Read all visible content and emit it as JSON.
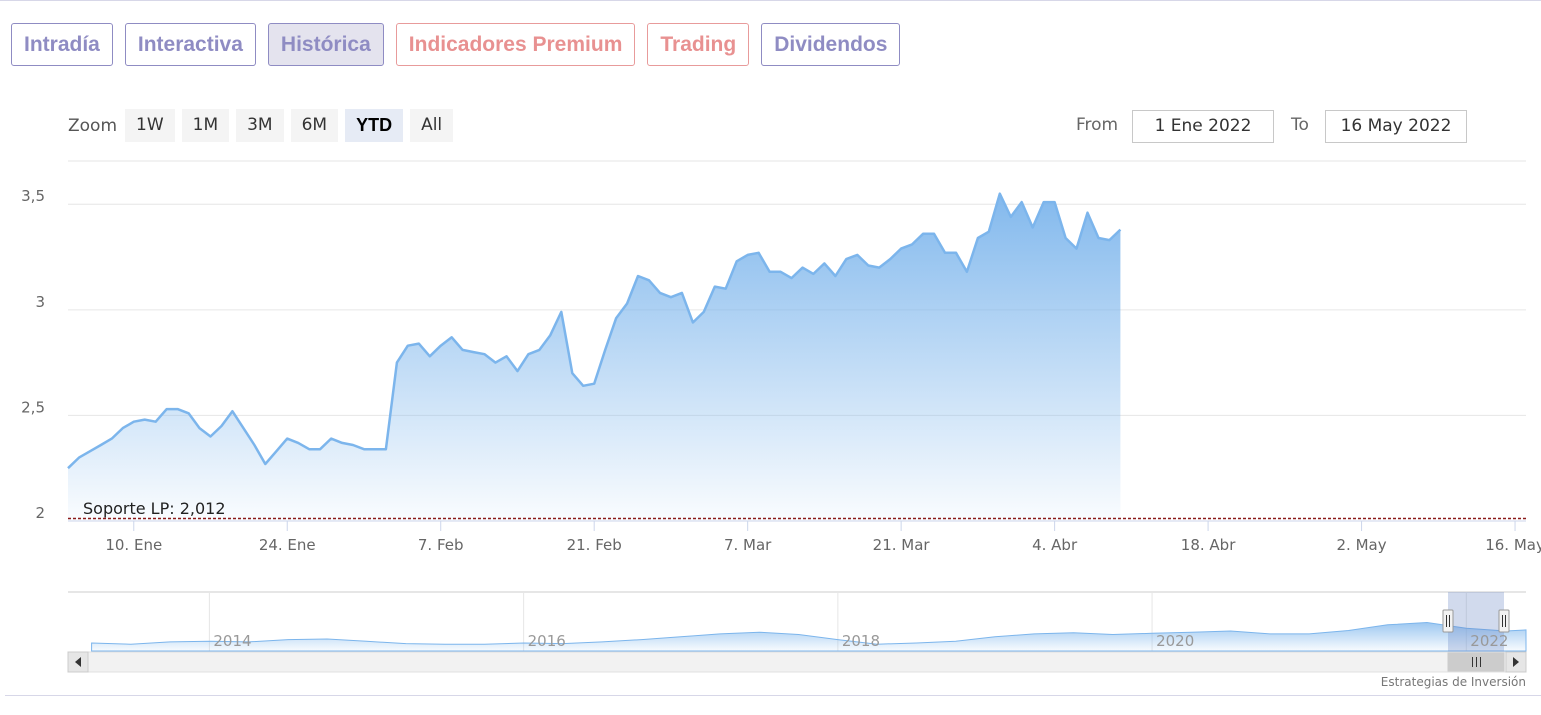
{
  "tabs": [
    {
      "label": "Intradía",
      "style": "normal"
    },
    {
      "label": "Interactiva",
      "style": "normal"
    },
    {
      "label": "Histórica",
      "style": "active"
    },
    {
      "label": "Indicadores Premium",
      "style": "premium"
    },
    {
      "label": "Trading",
      "style": "premium"
    },
    {
      "label": "Dividendos",
      "style": "normal"
    }
  ],
  "zoom": {
    "label": "Zoom",
    "buttons": [
      "1W",
      "1M",
      "3M",
      "6M",
      "YTD",
      "All"
    ],
    "selected": "YTD"
  },
  "range": {
    "from_label": "From",
    "from_value": "1 Ene 2022",
    "to_label": "To",
    "to_value": "16 May 2022"
  },
  "credit": "Estrategias de Inversión",
  "colors": {
    "line": "#7cb5ec",
    "accent_tab": "#8f8cc3",
    "premium_tab": "#e89191",
    "support_line": "#8b1a1a"
  },
  "chart_data": {
    "type": "area",
    "ylim": [
      2,
      3.7
    ],
    "yticks": [
      {
        "value": 2,
        "label": "2"
      },
      {
        "value": 2.5,
        "label": "2,5"
      },
      {
        "value": 3,
        "label": "3"
      },
      {
        "value": 3.5,
        "label": "3,5"
      }
    ],
    "xlim": [
      "2022-01-04",
      "2022-05-17"
    ],
    "xticks": [
      {
        "date": "2022-01-10",
        "label": "10. Ene"
      },
      {
        "date": "2022-01-24",
        "label": "24. Ene"
      },
      {
        "date": "2022-02-07",
        "label": "7. Feb"
      },
      {
        "date": "2022-02-21",
        "label": "21. Feb"
      },
      {
        "date": "2022-03-07",
        "label": "7. Mar"
      },
      {
        "date": "2022-03-21",
        "label": "21. Mar"
      },
      {
        "date": "2022-04-04",
        "label": "4. Abr"
      },
      {
        "date": "2022-04-18",
        "label": "18. Abr"
      },
      {
        "date": "2022-05-02",
        "label": "2. May"
      },
      {
        "date": "2022-05-16",
        "label": "16. May"
      }
    ],
    "support": {
      "label": "Soporte LP: 2,012",
      "value": 2.012
    },
    "series": [
      {
        "points": [
          [
            "2022-01-04",
            2.25
          ],
          [
            "2022-01-05",
            2.3
          ],
          [
            "2022-01-06",
            2.33
          ],
          [
            "2022-01-07",
            2.36
          ],
          [
            "2022-01-08",
            2.39
          ],
          [
            "2022-01-09",
            2.44
          ],
          [
            "2022-01-10",
            2.47
          ],
          [
            "2022-01-11",
            2.48
          ],
          [
            "2022-01-12",
            2.47
          ],
          [
            "2022-01-13",
            2.53
          ],
          [
            "2022-01-14",
            2.53
          ],
          [
            "2022-01-15",
            2.51
          ],
          [
            "2022-01-16",
            2.44
          ],
          [
            "2022-01-17",
            2.4
          ],
          [
            "2022-01-18",
            2.45
          ],
          [
            "2022-01-19",
            2.52
          ],
          [
            "2022-01-21",
            2.36
          ],
          [
            "2022-01-22",
            2.27
          ],
          [
            "2022-01-23",
            2.33
          ],
          [
            "2022-01-24",
            2.39
          ],
          [
            "2022-01-25",
            2.37
          ],
          [
            "2022-01-26",
            2.34
          ],
          [
            "2022-01-27",
            2.34
          ],
          [
            "2022-01-28",
            2.39
          ],
          [
            "2022-01-29",
            2.37
          ],
          [
            "2022-01-30",
            2.36
          ],
          [
            "2022-01-31",
            2.34
          ],
          [
            "2022-02-01",
            2.34
          ],
          [
            "2022-02-02",
            2.34
          ],
          [
            "2022-02-03",
            2.75
          ],
          [
            "2022-02-04",
            2.83
          ],
          [
            "2022-02-05",
            2.84
          ],
          [
            "2022-02-06",
            2.78
          ],
          [
            "2022-02-07",
            2.83
          ],
          [
            "2022-02-08",
            2.87
          ],
          [
            "2022-02-09",
            2.81
          ],
          [
            "2022-02-10",
            2.8
          ],
          [
            "2022-02-11",
            2.79
          ],
          [
            "2022-02-12",
            2.75
          ],
          [
            "2022-02-13",
            2.78
          ],
          [
            "2022-02-14",
            2.71
          ],
          [
            "2022-02-15",
            2.79
          ],
          [
            "2022-02-16",
            2.81
          ],
          [
            "2022-02-17",
            2.88
          ],
          [
            "2022-02-18",
            2.99
          ],
          [
            "2022-02-19",
            2.7
          ],
          [
            "2022-02-20",
            2.64
          ],
          [
            "2022-02-21",
            2.65
          ],
          [
            "2022-02-22",
            2.81
          ],
          [
            "2022-02-23",
            2.96
          ],
          [
            "2022-02-24",
            3.03
          ],
          [
            "2022-02-25",
            3.16
          ],
          [
            "2022-02-26",
            3.14
          ],
          [
            "2022-02-27",
            3.08
          ],
          [
            "2022-02-28",
            3.06
          ],
          [
            "2022-03-01",
            3.08
          ],
          [
            "2022-03-02",
            2.94
          ],
          [
            "2022-03-03",
            2.99
          ],
          [
            "2022-03-04",
            3.11
          ],
          [
            "2022-03-05",
            3.1
          ],
          [
            "2022-03-06",
            3.23
          ],
          [
            "2022-03-07",
            3.26
          ],
          [
            "2022-03-08",
            3.27
          ],
          [
            "2022-03-09",
            3.18
          ],
          [
            "2022-03-10",
            3.18
          ],
          [
            "2022-03-11",
            3.15
          ],
          [
            "2022-03-12",
            3.2
          ],
          [
            "2022-03-13",
            3.17
          ],
          [
            "2022-03-14",
            3.22
          ],
          [
            "2022-03-15",
            3.16
          ],
          [
            "2022-03-16",
            3.24
          ],
          [
            "2022-03-17",
            3.26
          ],
          [
            "2022-03-18",
            3.21
          ],
          [
            "2022-03-19",
            3.2
          ],
          [
            "2022-03-20",
            3.24
          ],
          [
            "2022-03-21",
            3.29
          ],
          [
            "2022-03-22",
            3.31
          ],
          [
            "2022-03-23",
            3.36
          ],
          [
            "2022-03-24",
            3.36
          ],
          [
            "2022-03-25",
            3.27
          ],
          [
            "2022-03-26",
            3.27
          ],
          [
            "2022-03-27",
            3.18
          ],
          [
            "2022-03-28",
            3.34
          ],
          [
            "2022-03-29",
            3.37
          ],
          [
            "2022-03-30",
            3.55
          ],
          [
            "2022-03-31",
            3.44
          ],
          [
            "2022-04-01",
            3.51
          ],
          [
            "2022-04-02",
            3.39
          ],
          [
            "2022-04-03",
            3.51
          ],
          [
            "2022-04-04",
            3.51
          ],
          [
            "2022-04-05",
            3.34
          ],
          [
            "2022-04-06",
            3.29
          ],
          [
            "2022-04-07",
            3.46
          ],
          [
            "2022-04-08",
            3.34
          ],
          [
            "2022-04-09",
            3.33
          ],
          [
            "2022-04-10",
            3.38
          ]
        ]
      }
    ]
  },
  "navigator": {
    "labels": [
      {
        "label": "2014",
        "year": 2014
      },
      {
        "label": "2016",
        "year": 2016
      },
      {
        "label": "2018",
        "year": 2018
      },
      {
        "label": "2020",
        "year": 2020
      },
      {
        "label": "2022",
        "year": 2022
      }
    ],
    "xlim": [
      2013.1,
      2022.38
    ],
    "points": [
      [
        2013.25,
        0.14
      ],
      [
        2013.5,
        0.12
      ],
      [
        2013.75,
        0.16
      ],
      [
        2014.0,
        0.17
      ],
      [
        2014.25,
        0.16
      ],
      [
        2014.5,
        0.2
      ],
      [
        2014.75,
        0.21
      ],
      [
        2015.0,
        0.17
      ],
      [
        2015.25,
        0.13
      ],
      [
        2015.5,
        0.12
      ],
      [
        2015.75,
        0.12
      ],
      [
        2016.0,
        0.14
      ],
      [
        2016.25,
        0.13
      ],
      [
        2016.5,
        0.16
      ],
      [
        2016.75,
        0.2
      ],
      [
        2017.0,
        0.25
      ],
      [
        2017.25,
        0.3
      ],
      [
        2017.5,
        0.33
      ],
      [
        2017.75,
        0.29
      ],
      [
        2018.0,
        0.2
      ],
      [
        2018.25,
        0.12
      ],
      [
        2018.5,
        0.14
      ],
      [
        2018.75,
        0.17
      ],
      [
        2019.0,
        0.25
      ],
      [
        2019.25,
        0.3
      ],
      [
        2019.5,
        0.32
      ],
      [
        2019.75,
        0.29
      ],
      [
        2020.0,
        0.31
      ],
      [
        2020.25,
        0.33
      ],
      [
        2020.5,
        0.35
      ],
      [
        2020.75,
        0.3
      ],
      [
        2021.0,
        0.3
      ],
      [
        2021.25,
        0.36
      ],
      [
        2021.5,
        0.46
      ],
      [
        2021.75,
        0.5
      ],
      [
        2022.0,
        0.4
      ],
      [
        2022.25,
        0.35
      ],
      [
        2022.38,
        0.37
      ]
    ]
  }
}
